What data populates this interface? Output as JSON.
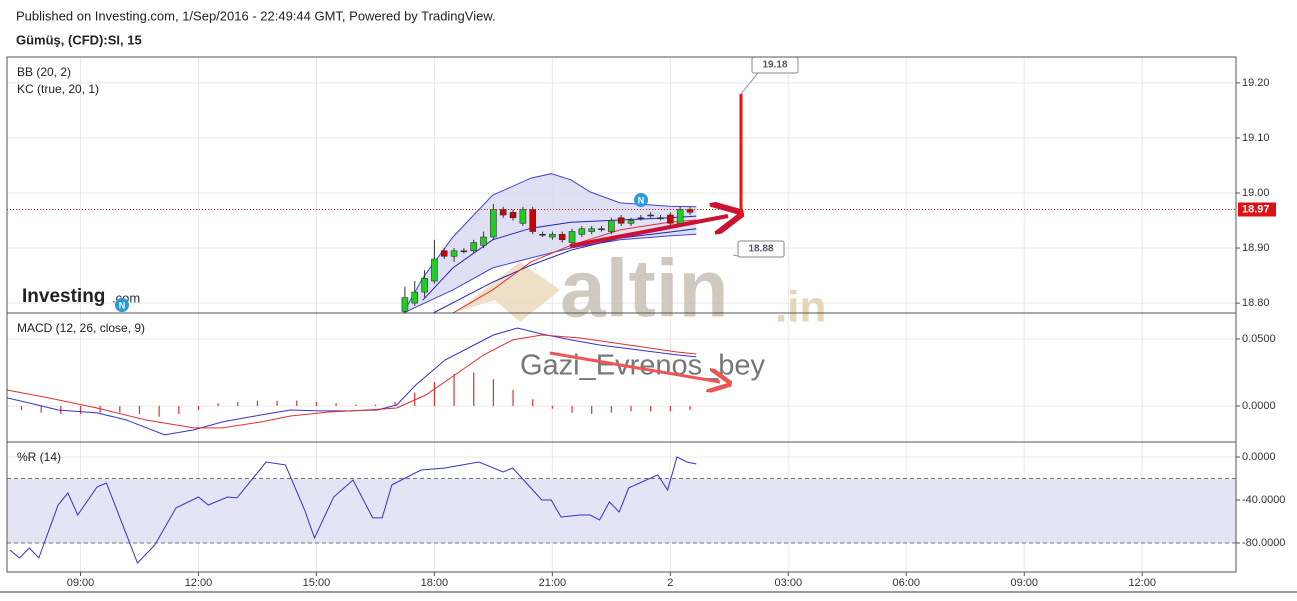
{
  "header": {
    "published": "Published on Investing.com, 1/Sep/2016 - 22:49:44 GMT, Powered by TradingView.",
    "symbol": "Gümüş, (CFD):SI, 15"
  },
  "watermarks": {
    "investing": "Investing",
    "investing_suffix": ".com",
    "altin": "altin",
    "altin_suffix": ".in",
    "author": "Gazi_Evrenos_bey"
  },
  "chart_data": [
    {
      "type": "candlestick",
      "indicators": [
        "BB (20, 2)",
        "KC (true, 20, 1)"
      ],
      "xlim": [
        7.131,
        38.385
      ],
      "ylim": [
        18.782,
        19.247
      ],
      "yticks": [
        {
          "value": 18.8,
          "label": "18.80"
        },
        {
          "value": 18.9,
          "label": "18.90"
        },
        {
          "value": 19.0,
          "label": "19.00"
        },
        {
          "value": 19.1,
          "label": "19.10"
        },
        {
          "value": 19.2,
          "label": "19.20"
        }
      ],
      "grid": true,
      "up_color": "#22cc22",
      "down_color": "#cc0000",
      "x": [
        17.25,
        17.5,
        17.75,
        18,
        18.25,
        18.5,
        18.75,
        19,
        19.25,
        19.5,
        19.75,
        20,
        20.25,
        20.5,
        20.75,
        21,
        21.25,
        21.5,
        21.75,
        22,
        22.25,
        22.5,
        22.75,
        23,
        23.25,
        23.5,
        23.75,
        24,
        24.25,
        24.5
      ],
      "open": [
        18.785,
        18.8,
        18.82,
        18.84,
        18.895,
        18.885,
        18.895,
        18.895,
        18.905,
        18.92,
        18.97,
        18.965,
        18.945,
        18.97,
        18.925,
        18.92,
        18.925,
        18.91,
        18.925,
        18.93,
        18.935,
        18.93,
        18.955,
        18.945,
        18.955,
        18.96,
        18.955,
        18.96,
        18.945,
        18.97
      ],
      "high": [
        18.83,
        18.84,
        18.86,
        18.915,
        18.9,
        18.9,
        18.9,
        18.915,
        18.93,
        18.98,
        18.975,
        18.97,
        18.975,
        18.975,
        18.93,
        18.93,
        18.93,
        18.935,
        18.94,
        18.94,
        18.94,
        18.955,
        18.96,
        18.955,
        18.96,
        18.965,
        18.96,
        18.965,
        18.975,
        18.975
      ],
      "low": [
        18.78,
        18.795,
        18.81,
        18.835,
        18.88,
        18.875,
        18.89,
        18.89,
        18.9,
        18.915,
        18.955,
        18.95,
        18.94,
        18.925,
        18.92,
        18.915,
        18.91,
        18.905,
        18.92,
        18.925,
        18.93,
        18.925,
        18.94,
        18.94,
        18.95,
        18.955,
        18.95,
        18.94,
        18.94,
        18.96
      ],
      "close": [
        18.81,
        18.82,
        18.845,
        18.88,
        18.885,
        18.895,
        18.895,
        18.91,
        18.92,
        18.97,
        18.96,
        18.955,
        18.97,
        18.93,
        18.925,
        18.925,
        18.915,
        18.93,
        18.935,
        18.935,
        18.935,
        18.95,
        18.945,
        18.95,
        18.955,
        18.96,
        18.955,
        18.945,
        18.97,
        18.965
      ],
      "series": [
        {
          "color": "#4444cc",
          "x": [
            17.21,
            17.7,
            18.47,
            19.48,
            20.46,
            20.97,
            21.47,
            21.96,
            22.72,
            23.97,
            24.66
          ],
          "values": [
            18.782,
            18.845,
            18.92,
            18.996,
            19.027,
            19.035,
            19.024,
            19.002,
            18.982,
            18.976,
            18.975
          ]
        },
        {
          "color": "#4444cc",
          "x": [
            17.21,
            18.47,
            19.48,
            20.46,
            21.47,
            22.72,
            23.97,
            24.66
          ],
          "values": [
            18.782,
            18.824,
            18.864,
            18.882,
            18.9,
            18.915,
            18.922,
            18.925
          ]
        },
        {
          "color": "#2222bb",
          "x": [
            17.7,
            18.47,
            19.48,
            20.46,
            21.47,
            22.72,
            23.97,
            24.66
          ],
          "values": [
            18.805,
            18.864,
            18.915,
            18.936,
            18.947,
            18.951,
            18.955,
            18.958
          ]
        },
        {
          "color": "#2222bb",
          "x": [
            17.97,
            19.48,
            20.46,
            21.47,
            22.72,
            23.97,
            24.66
          ],
          "values": [
            18.782,
            18.838,
            18.869,
            18.896,
            18.918,
            18.929,
            18.935
          ]
        },
        {
          "color": "#e03030",
          "x": [
            18.47,
            19.48,
            20.46,
            21.47,
            22.72,
            23.97,
            24.66
          ],
          "values": [
            18.782,
            18.824,
            18.875,
            18.905,
            18.933,
            18.947,
            18.951
          ]
        }
      ],
      "band_color": "#d8d8f2",
      "last_price": 18.97,
      "last_price_color": "#dd1111",
      "price_labels": [
        19.18,
        18.88
      ],
      "news_markers": [
        "N",
        "N"
      ]
    },
    {
      "type": "line",
      "indicators": [
        "MACD (12, 26, close, 9)"
      ],
      "xlim": [
        7.131,
        38.385
      ],
      "ylim": [
        -0.0269,
        0.0694
      ],
      "yticks": [
        {
          "value": 0,
          "label": "0.0000"
        },
        {
          "value": 0.05,
          "label": "0.0500"
        }
      ],
      "grid": true,
      "histogram": {
        "color": "#e03030",
        "x": [
          7.5,
          8,
          8.5,
          9,
          9.5,
          10,
          10.5,
          11,
          11.5,
          12,
          12.5,
          13,
          13.5,
          14,
          14.5,
          15,
          15.5,
          16,
          16.5,
          17,
          17.5,
          18,
          18.5,
          19,
          19.5,
          20,
          20.5,
          21,
          21.5,
          22,
          22.5,
          23,
          23.5,
          24,
          24.5
        ],
        "values": [
          -0.003,
          -0.005,
          -0.006,
          -0.006,
          -0.005,
          -0.005,
          -0.006,
          -0.008,
          -0.006,
          -0.003,
          0.002,
          0.003,
          0.004,
          0.004,
          0.004,
          0.003,
          0.002,
          0.001,
          0.001,
          0.003,
          0.01,
          0.018,
          0.024,
          0.025,
          0.02,
          0.012,
          0.005,
          -0.002,
          -0.005,
          -0.006,
          -0.005,
          -0.004,
          -0.004,
          -0.004,
          -0.003
        ]
      },
      "series": [
        {
          "color": "#3333cc",
          "x": [
            7.13,
            7.7,
            8.43,
            9.42,
            10.16,
            11.14,
            11.88,
            12.61,
            13.6,
            14.34,
            15.07,
            15.81,
            16.55,
            17.04,
            17.53,
            18.27,
            19.01,
            19.5,
            20.11,
            20.73,
            21.47,
            22.2,
            23.19,
            24.17,
            24.66
          ],
          "values": [
            0.006,
            0.0022,
            -0.003,
            -0.0052,
            -0.0104,
            -0.0216,
            -0.0179,
            -0.0119,
            -0.0067,
            -0.003,
            -0.0037,
            -0.0037,
            -0.003,
            0.0007,
            0.0157,
            0.0343,
            0.0455,
            0.053,
            0.0582,
            0.0537,
            0.0493,
            0.0455,
            0.0418,
            0.0381,
            0.0366
          ]
        },
        {
          "color": "#e03030",
          "x": [
            7.13,
            8.19,
            9.42,
            10.65,
            11.88,
            12.61,
            13.6,
            14.34,
            15.32,
            16.3,
            17.04,
            17.78,
            18.52,
            19.25,
            19.99,
            20.73,
            21.71,
            22.94,
            24.17,
            24.66
          ],
          "values": [
            0.0119,
            0.006,
            -0.0015,
            -0.0104,
            -0.0164,
            -0.0164,
            -0.0119,
            -0.0075,
            -0.0045,
            -0.003,
            -0.0015,
            0.0082,
            0.0231,
            0.0381,
            0.0493,
            0.053,
            0.0507,
            0.0455,
            0.0403,
            0.0388
          ]
        }
      ]
    },
    {
      "type": "line",
      "indicators": [
        "%R (14)"
      ],
      "xlim": [
        7.131,
        38.385
      ],
      "ylim": [
        -107,
        13.95
      ],
      "yticks": [
        {
          "value": 0,
          "label": "0.0000"
        },
        {
          "value": -40,
          "label": "-40.0000"
        },
        {
          "value": -80,
          "label": "-80.0000"
        }
      ],
      "xticks": [
        {
          "value": 9,
          "label": "09:00"
        },
        {
          "value": 12,
          "label": "12:00"
        },
        {
          "value": 15,
          "label": "15:00"
        },
        {
          "value": 18,
          "label": "18:00"
        },
        {
          "value": 21,
          "label": "21:00"
        },
        {
          "value": 24,
          "label": "2"
        },
        {
          "value": 27,
          "label": "03:00"
        },
        {
          "value": 30,
          "label": "06:00"
        },
        {
          "value": 33,
          "label": "09:00"
        },
        {
          "value": 36,
          "label": "12:00"
        }
      ],
      "grid": true,
      "levels": [
        -20,
        -80
      ],
      "band_color": "#e4e4f4",
      "series": [
        {
          "color": "#3333cc",
          "x": [
            7.205,
            7.45,
            7.7,
            7.94,
            8.43,
            8.68,
            8.93,
            9.42,
            9.66,
            10.45,
            10.89,
            11.43,
            12.0,
            12.25,
            12.74,
            12.98,
            13.72,
            14.21,
            14.7,
            14.95,
            15.44,
            15.93,
            16.43,
            16.67,
            16.92,
            17.66,
            18.27,
            19.13,
            19.75,
            19.99,
            20.73,
            20.97,
            21.22,
            21.71,
            21.96,
            22.2,
            22.45,
            22.7,
            22.94,
            23.68,
            23.93,
            24.17,
            24.42,
            24.66
          ],
          "values": [
            -86.5,
            -94.0,
            -84.7,
            -94.0,
            -44.7,
            -33.5,
            -54.0,
            -27.9,
            -24.2,
            -98.6,
            -81.9,
            -47.4,
            -37.2,
            -44.7,
            -37.2,
            -38.1,
            -4.7,
            -7.4,
            -49.3,
            -75.3,
            -37.2,
            -21.4,
            -56.7,
            -56.7,
            -26.0,
            -12.1,
            -10.2,
            -4.7,
            -14.0,
            -10.2,
            -40.0,
            -40.0,
            -55.8,
            -54.0,
            -54.0,
            -58.6,
            -41.9,
            -51.2,
            -28.8,
            -16.7,
            -30.7,
            0,
            -4.7,
            -6.5
          ]
        }
      ]
    }
  ]
}
